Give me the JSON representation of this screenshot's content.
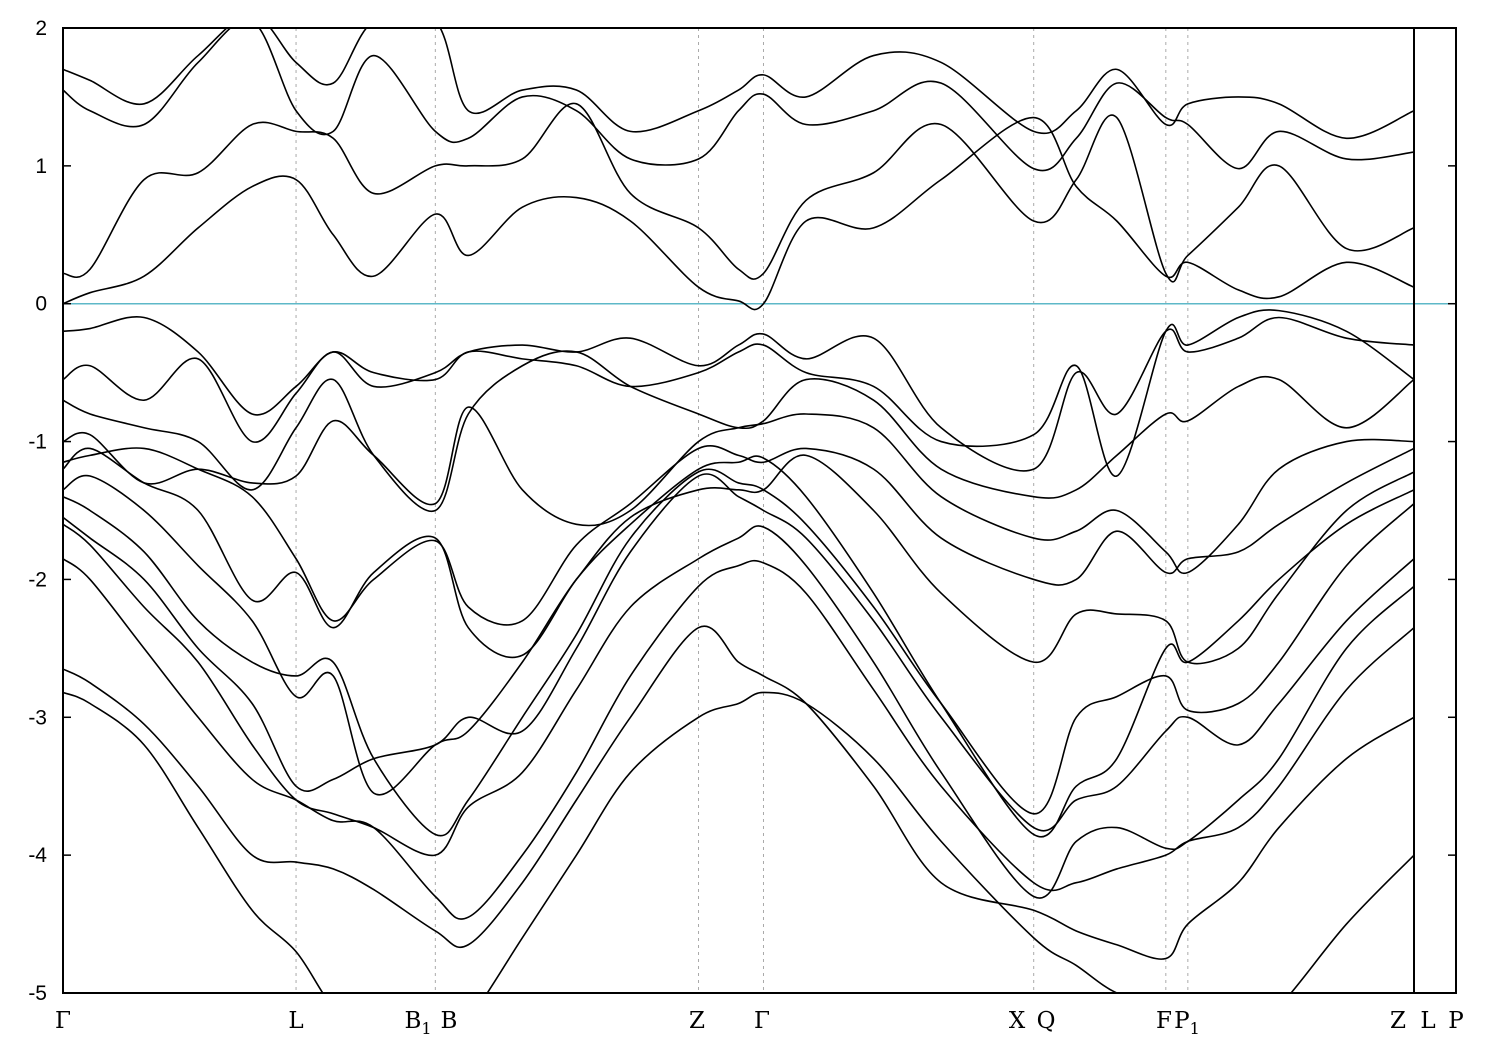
{
  "chart_data": {
    "type": "line",
    "title": "",
    "xlabel": "",
    "ylabel": "",
    "ylim": [
      -5,
      2
    ],
    "yticks": [
      -5,
      -4,
      -3,
      -2,
      -1,
      0,
      1,
      2
    ],
    "ytick_labels": [
      "-5",
      "-4",
      "-3",
      "-2",
      "-1",
      "0",
      "1",
      "2"
    ],
    "xlim": [
      0,
      1.0
    ],
    "kpoints": [
      {
        "label": "Γ",
        "sub": "",
        "x": 0.0,
        "dashed": false
      },
      {
        "label": "L",
        "sub": "",
        "x": 0.1725,
        "dashed": true
      },
      {
        "label": "B",
        "sub": "1",
        "x": 0.2756,
        "dashed": true
      },
      {
        "label": "B",
        "sub": "",
        "x": 0.2756,
        "dashed": false
      },
      {
        "label": "Z",
        "sub": "",
        "x": 0.4704,
        "dashed": true
      },
      {
        "label": "Γ",
        "sub": "",
        "x": 0.5185,
        "dashed": true
      },
      {
        "label": "X",
        "sub": "",
        "x": 0.7185,
        "dashed": true
      },
      {
        "label": "Q",
        "sub": "",
        "x": 0.7185,
        "dashed": false
      },
      {
        "label": "F",
        "sub": "",
        "x": 0.8163,
        "dashed": true
      },
      {
        "label": "P",
        "sub": "1",
        "x": 0.8326,
        "dashed": true
      },
      {
        "label": "Z",
        "sub": "",
        "x": 1.0,
        "dashed": false
      },
      {
        "label": "L",
        "sub": "",
        "x": 1.0,
        "dashed": false
      },
      {
        "label": "P",
        "sub": "",
        "x": 1.0,
        "dashed": false
      }
    ],
    "fermi_level": {
      "y": 0,
      "color": "#5eb8c8"
    },
    "line_color": "#000000",
    "series": [
      {
        "x": [
          0,
          0.02,
          0.06,
          0.1,
          0.14,
          0.1725,
          0.2,
          0.23,
          0.2756,
          0.3,
          0.34,
          0.38,
          0.42,
          0.4704,
          0.5,
          0.5185,
          0.55,
          0.6,
          0.65,
          0.7185,
          0.75,
          0.78,
          0.8163,
          0.8326,
          0.87,
          0.9,
          0.95,
          1.0
        ],
        "values": [
          -2.82,
          -2.9,
          -3.2,
          -3.8,
          -4.4,
          -4.7,
          -5.1,
          -5.3,
          -5.4,
          -5.2,
          -4.6,
          -4.0,
          -3.4,
          -3.0,
          -2.9,
          -2.82,
          -2.9,
          -3.3,
          -3.9,
          -4.6,
          -4.8,
          -5.0,
          -5.1,
          -5.2,
          -5.3,
          -5.1,
          -4.5,
          -4.0
        ]
      },
      {
        "x": [
          0,
          0.02,
          0.06,
          0.1,
          0.14,
          0.1725,
          0.2,
          0.23,
          0.2756,
          0.3,
          0.34,
          0.38,
          0.42,
          0.4704,
          0.5,
          0.5185,
          0.55,
          0.6,
          0.65,
          0.7185,
          0.75,
          0.78,
          0.8163,
          0.8326,
          0.87,
          0.9,
          0.95,
          1.0
        ],
        "values": [
          -2.65,
          -2.75,
          -3.05,
          -3.5,
          -4.0,
          -4.05,
          -4.1,
          -4.25,
          -4.55,
          -4.65,
          -4.2,
          -3.6,
          -3.0,
          -2.35,
          -2.6,
          -2.7,
          -2.9,
          -3.5,
          -4.2,
          -4.4,
          -4.55,
          -4.65,
          -4.75,
          -4.5,
          -4.2,
          -3.8,
          -3.3,
          -3.0
        ]
      },
      {
        "x": [
          0,
          0.02,
          0.06,
          0.1,
          0.14,
          0.1725,
          0.2,
          0.23,
          0.2756,
          0.3,
          0.34,
          0.38,
          0.42,
          0.4704,
          0.5,
          0.5185,
          0.55,
          0.6,
          0.65,
          0.7185,
          0.75,
          0.78,
          0.8163,
          0.8326,
          0.87,
          0.9,
          0.95,
          1.0
        ],
        "values": [
          -1.85,
          -2.0,
          -2.5,
          -3.0,
          -3.45,
          -3.6,
          -3.75,
          -3.8,
          -4.3,
          -4.45,
          -4.0,
          -3.4,
          -2.7,
          -2.05,
          -1.9,
          -1.88,
          -2.1,
          -2.8,
          -3.5,
          -4.2,
          -4.2,
          -4.1,
          -4.0,
          -3.9,
          -3.8,
          -3.5,
          -2.8,
          -2.35
        ]
      },
      {
        "x": [
          0,
          0.02,
          0.06,
          0.1,
          0.14,
          0.1725,
          0.2,
          0.23,
          0.2756,
          0.3,
          0.34,
          0.38,
          0.42,
          0.4704,
          0.5,
          0.5185,
          0.55,
          0.6,
          0.65,
          0.7185,
          0.75,
          0.78,
          0.8163,
          0.8326,
          0.87,
          0.9,
          0.95,
          1.0
        ],
        "values": [
          -1.6,
          -1.75,
          -2.2,
          -2.6,
          -3.2,
          -3.6,
          -3.7,
          -3.8,
          -4.0,
          -3.65,
          -3.4,
          -2.8,
          -2.2,
          -1.85,
          -1.7,
          -1.62,
          -1.9,
          -2.6,
          -3.4,
          -4.3,
          -3.9,
          -3.8,
          -3.95,
          -3.9,
          -3.6,
          -3.3,
          -2.5,
          -2.05
        ]
      },
      {
        "x": [
          0,
          0.02,
          0.06,
          0.1,
          0.14,
          0.1725,
          0.2,
          0.23,
          0.2756,
          0.3,
          0.34,
          0.38,
          0.42,
          0.4704,
          0.5,
          0.5185,
          0.55,
          0.6,
          0.65,
          0.7185,
          0.75,
          0.78,
          0.8163,
          0.8326,
          0.87,
          0.9,
          0.95,
          1.0
        ],
        "values": [
          -1.55,
          -1.7,
          -2.0,
          -2.5,
          -2.9,
          -3.5,
          -3.45,
          -3.3,
          -3.2,
          -3.0,
          -3.1,
          -2.5,
          -1.8,
          -1.25,
          -1.4,
          -1.5,
          -1.7,
          -2.3,
          -3.0,
          -3.8,
          -3.6,
          -3.5,
          -3.1,
          -3.0,
          -3.2,
          -2.9,
          -2.3,
          -1.85
        ]
      },
      {
        "x": [
          0,
          0.02,
          0.06,
          0.1,
          0.14,
          0.1725,
          0.2,
          0.23,
          0.2756,
          0.3,
          0.34,
          0.38,
          0.42,
          0.4704,
          0.5,
          0.5185,
          0.55,
          0.6,
          0.65,
          0.7185,
          0.75,
          0.78,
          0.8163,
          0.8326,
          0.87,
          0.9,
          0.95,
          1.0
        ],
        "values": [
          -1.4,
          -1.5,
          -1.8,
          -2.3,
          -2.6,
          -2.7,
          -2.6,
          -3.3,
          -3.85,
          -3.6,
          -3.0,
          -2.4,
          -1.7,
          -1.22,
          -1.3,
          -1.35,
          -1.6,
          -2.2,
          -2.9,
          -3.7,
          -3.0,
          -2.85,
          -2.7,
          -2.95,
          -2.9,
          -2.6,
          -1.9,
          -1.45
        ]
      },
      {
        "x": [
          0,
          0.02,
          0.06,
          0.1,
          0.14,
          0.1725,
          0.2,
          0.23,
          0.2756,
          0.3,
          0.34,
          0.38,
          0.42,
          0.4704,
          0.5,
          0.5185,
          0.55,
          0.6,
          0.65,
          0.7185,
          0.75,
          0.78,
          0.8163,
          0.8326,
          0.87,
          0.9,
          0.95,
          1.0
        ],
        "values": [
          -1.35,
          -1.25,
          -1.5,
          -1.9,
          -2.3,
          -2.85,
          -2.7,
          -3.55,
          -3.2,
          -3.1,
          -2.6,
          -2.0,
          -1.6,
          -1.2,
          -1.15,
          -1.12,
          -1.4,
          -2.1,
          -2.9,
          -3.85,
          -3.5,
          -3.3,
          -2.5,
          -2.6,
          -2.3,
          -2.0,
          -1.6,
          -1.35
        ]
      },
      {
        "x": [
          0,
          0.02,
          0.06,
          0.1,
          0.14,
          0.1725,
          0.2,
          0.23,
          0.2756,
          0.3,
          0.34,
          0.38,
          0.42,
          0.4704,
          0.5,
          0.5185,
          0.55,
          0.6,
          0.65,
          0.7185,
          0.75,
          0.78,
          0.8163,
          0.8326,
          0.87,
          0.9,
          0.95,
          1.0
        ],
        "values": [
          -1.2,
          -1.05,
          -1.3,
          -1.5,
          -2.15,
          -1.95,
          -2.35,
          -1.95,
          -1.7,
          -2.35,
          -2.55,
          -2.0,
          -1.55,
          -1.35,
          -1.35,
          -1.35,
          -1.1,
          -1.5,
          -2.1,
          -2.6,
          -2.25,
          -2.25,
          -2.3,
          -2.6,
          -2.5,
          -2.1,
          -1.5,
          -1.22
        ]
      },
      {
        "x": [
          0,
          0.02,
          0.06,
          0.1,
          0.14,
          0.1725,
          0.2,
          0.23,
          0.2756,
          0.3,
          0.34,
          0.38,
          0.42,
          0.4704,
          0.5,
          0.5185,
          0.55,
          0.6,
          0.65,
          0.7185,
          0.75,
          0.78,
          0.8163,
          0.8326,
          0.87,
          0.9,
          0.95,
          1.0
        ],
        "values": [
          -1.15,
          -1.1,
          -1.05,
          -1.2,
          -1.4,
          -1.85,
          -2.3,
          -2.0,
          -1.72,
          -2.2,
          -2.3,
          -1.75,
          -1.45,
          -1.05,
          -1.1,
          -1.15,
          -1.05,
          -1.2,
          -1.7,
          -2.0,
          -2.0,
          -1.65,
          -1.95,
          -1.85,
          -1.8,
          -1.6,
          -1.3,
          -1.05
        ]
      },
      {
        "x": [
          0,
          0.02,
          0.06,
          0.1,
          0.14,
          0.1725,
          0.2,
          0.23,
          0.2756,
          0.3,
          0.34,
          0.38,
          0.42,
          0.4704,
          0.5,
          0.5185,
          0.55,
          0.6,
          0.65,
          0.7185,
          0.75,
          0.78,
          0.8163,
          0.8326,
          0.87,
          0.9,
          0.95,
          1.0
        ],
        "values": [
          -1.0,
          -0.95,
          -1.3,
          -1.2,
          -1.3,
          -1.25,
          -0.85,
          -1.1,
          -1.45,
          -0.75,
          -1.35,
          -1.6,
          -1.5,
          -1.0,
          -0.9,
          -0.87,
          -0.8,
          -0.9,
          -1.4,
          -1.7,
          -1.65,
          -1.5,
          -1.8,
          -1.95,
          -1.6,
          -1.2,
          -1.0,
          -1.0
        ]
      },
      {
        "x": [
          0,
          0.02,
          0.06,
          0.1,
          0.14,
          0.1725,
          0.2,
          0.23,
          0.2756,
          0.3,
          0.34,
          0.38,
          0.42,
          0.4704,
          0.5,
          0.5185,
          0.55,
          0.6,
          0.65,
          0.7185,
          0.75,
          0.78,
          0.8163,
          0.8326,
          0.87,
          0.9,
          0.95,
          1.0
        ],
        "values": [
          -0.7,
          -0.8,
          -0.9,
          -1.0,
          -1.35,
          -0.9,
          -0.55,
          -1.1,
          -1.5,
          -0.8,
          -0.45,
          -0.35,
          -0.6,
          -0.8,
          -0.9,
          -0.85,
          -0.55,
          -0.7,
          -1.2,
          -1.4,
          -1.35,
          -1.1,
          -0.8,
          -0.85,
          -0.6,
          -0.55,
          -0.9,
          -0.55
        ]
      },
      {
        "x": [
          0,
          0.02,
          0.06,
          0.1,
          0.14,
          0.1725,
          0.2,
          0.23,
          0.2756,
          0.3,
          0.34,
          0.38,
          0.42,
          0.4704,
          0.5,
          0.5185,
          0.55,
          0.6,
          0.65,
          0.7185,
          0.75,
          0.78,
          0.8163,
          0.8326,
          0.87,
          0.9,
          0.95,
          1.0
        ],
        "values": [
          -0.55,
          -0.45,
          -0.7,
          -0.4,
          -1.0,
          -0.65,
          -0.35,
          -0.6,
          -0.5,
          -0.35,
          -0.3,
          -0.35,
          -0.25,
          -0.45,
          -0.3,
          -0.22,
          -0.4,
          -0.25,
          -0.9,
          -1.2,
          -0.5,
          -0.8,
          -0.2,
          -0.35,
          -0.25,
          -0.1,
          -0.25,
          -0.3
        ]
      },
      {
        "x": [
          0,
          0.02,
          0.06,
          0.1,
          0.14,
          0.1725,
          0.2,
          0.23,
          0.2756,
          0.3,
          0.34,
          0.38,
          0.42,
          0.4704,
          0.5,
          0.5185,
          0.55,
          0.6,
          0.65,
          0.7185,
          0.75,
          0.78,
          0.8163,
          0.8326,
          0.87,
          0.9,
          0.95,
          1.0
        ],
        "values": [
          -0.2,
          -0.18,
          -0.1,
          -0.35,
          -0.8,
          -0.6,
          -0.35,
          -0.5,
          -0.55,
          -0.35,
          -0.4,
          -0.45,
          -0.6,
          -0.5,
          -0.35,
          -0.3,
          -0.5,
          -0.6,
          -1.0,
          -0.95,
          -0.45,
          -1.25,
          -0.2,
          -0.3,
          -0.1,
          -0.05,
          -0.2,
          -0.55
        ]
      },
      {
        "x": [
          0,
          0.02,
          0.06,
          0.1,
          0.14,
          0.1725,
          0.2,
          0.23,
          0.2756,
          0.3,
          0.34,
          0.38,
          0.42,
          0.4704,
          0.5,
          0.5185,
          0.55,
          0.6,
          0.65,
          0.7185,
          0.75,
          0.78,
          0.8163,
          0.8326,
          0.87,
          0.9,
          0.95,
          1.0
        ],
        "values": [
          0.0,
          0.08,
          0.2,
          0.55,
          0.85,
          0.9,
          0.5,
          0.2,
          0.65,
          0.35,
          0.7,
          0.77,
          0.6,
          0.12,
          0.02,
          0.0,
          0.6,
          0.55,
          0.9,
          1.35,
          0.85,
          0.6,
          0.2,
          0.3,
          0.1,
          0.05,
          0.3,
          0.12
        ]
      },
      {
        "x": [
          0,
          0.02,
          0.06,
          0.1,
          0.14,
          0.1725,
          0.2,
          0.23,
          0.2756,
          0.3,
          0.34,
          0.38,
          0.42,
          0.4704,
          0.5,
          0.5185,
          0.55,
          0.6,
          0.65,
          0.7185,
          0.75,
          0.78,
          0.8163,
          0.8326,
          0.87,
          0.9,
          0.95,
          1.0
        ],
        "values": [
          0.22,
          0.25,
          0.9,
          0.95,
          1.3,
          1.25,
          1.2,
          0.8,
          1.0,
          1.0,
          1.05,
          1.45,
          0.8,
          0.55,
          0.25,
          0.22,
          0.75,
          0.95,
          1.3,
          0.6,
          0.9,
          1.35,
          0.22,
          0.35,
          0.7,
          1.0,
          0.4,
          0.55
        ]
      },
      {
        "x": [
          0,
          0.02,
          0.06,
          0.1,
          0.14,
          0.1725,
          0.2,
          0.23,
          0.2756,
          0.3,
          0.34,
          0.38,
          0.42,
          0.4704,
          0.5,
          0.5185,
          0.55,
          0.6,
          0.65,
          0.7185,
          0.75,
          0.78,
          0.8163,
          0.8326,
          0.87,
          0.9,
          0.95,
          1.0
        ],
        "values": [
          1.55,
          1.4,
          1.3,
          1.75,
          2.05,
          1.4,
          1.25,
          1.8,
          1.25,
          1.2,
          1.5,
          1.4,
          1.05,
          1.05,
          1.4,
          1.52,
          1.3,
          1.4,
          1.6,
          0.98,
          1.2,
          1.6,
          1.35,
          1.3,
          0.98,
          1.25,
          1.05,
          1.1
        ]
      },
      {
        "x": [
          0,
          0.02,
          0.06,
          0.1,
          0.14,
          0.1725,
          0.2,
          0.23,
          0.2756,
          0.3,
          0.34,
          0.38,
          0.42,
          0.4704,
          0.5,
          0.5185,
          0.55,
          0.6,
          0.65,
          0.7185,
          0.75,
          0.78,
          0.8163,
          0.8326,
          0.87,
          0.9,
          0.95,
          1.0
        ],
        "values": [
          1.7,
          1.62,
          1.45,
          1.8,
          2.1,
          1.75,
          1.6,
          2.05,
          2.05,
          1.4,
          1.55,
          1.55,
          1.25,
          1.4,
          1.55,
          1.66,
          1.5,
          1.8,
          1.75,
          1.25,
          1.4,
          1.7,
          1.3,
          1.45,
          1.5,
          1.45,
          1.2,
          1.4
        ]
      }
    ]
  }
}
